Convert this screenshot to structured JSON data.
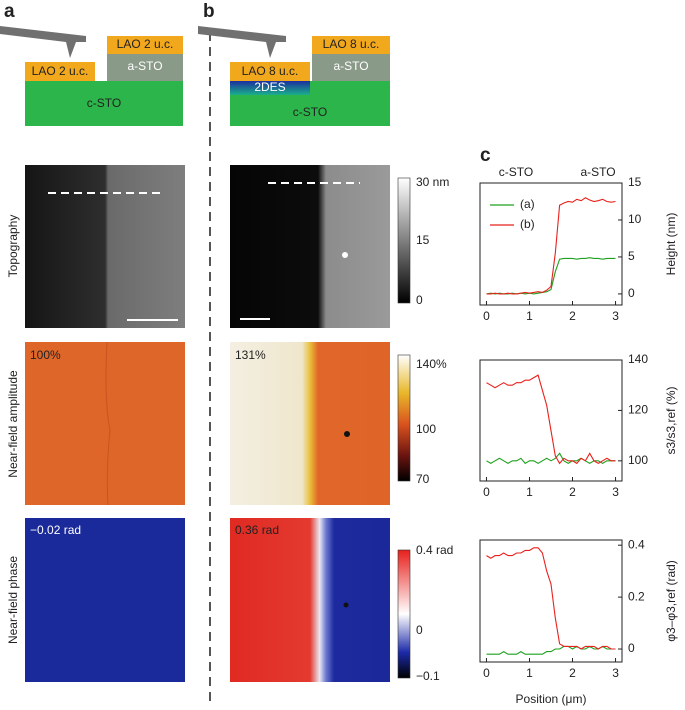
{
  "figure": {
    "panel_labels": {
      "a": "a",
      "b": "b",
      "c": "c"
    },
    "schematic_a": {
      "lao_left": "LAO 2 u.c.",
      "lao_right": "LAO 2 u.c.",
      "a_sto": "a-STO",
      "c_sto": "c-STO"
    },
    "schematic_b": {
      "lao_left": "LAO 8 u.c.",
      "lao_right": "LAO 8 u.c.",
      "a_sto": "a-STO",
      "c_sto": "c-STO",
      "twodes": "2DES"
    },
    "row_labels": [
      "Topography",
      "Near-field amplitude",
      "Near-field phase"
    ],
    "image_annotations": {
      "a_amp": "100%",
      "a_phase": "−0.02 rad",
      "b_amp": "131%",
      "b_phase": "0.36 rad"
    },
    "colorbars": [
      [
        "30 nm",
        "15",
        "0"
      ],
      [
        "140%",
        "100",
        "70"
      ],
      [
        "0.4 rad",
        "0",
        "−0.1"
      ]
    ]
  },
  "chart_data": [
    {
      "type": "line",
      "ylabel": "Height (nm)",
      "annotations": [
        "c-STO",
        "a-STO"
      ],
      "legend": "upper left",
      "x": [
        0,
        0.1,
        0.2,
        0.3,
        0.4,
        0.5,
        0.6,
        0.7,
        0.8,
        0.9,
        1,
        1.1,
        1.2,
        1.3,
        1.4,
        1.5,
        1.6,
        1.7,
        1.8,
        1.9,
        2,
        2.1,
        2.2,
        2.3,
        2.4,
        2.5,
        2.6,
        2.7,
        2.8,
        2.9,
        3
      ],
      "xlim": [
        -0.15,
        3.15
      ],
      "xticks": [
        0,
        1,
        2,
        3
      ],
      "ylim": [
        -1.5,
        15
      ],
      "yticks": [
        0,
        5,
        10,
        15
      ],
      "series": [
        {
          "name": "(a)",
          "color": "#1fa01f",
          "values": [
            0,
            0.1,
            0,
            0.1,
            0,
            0,
            0.1,
            0,
            0.1,
            0,
            0.1,
            0,
            0.1,
            0.2,
            0.3,
            0.6,
            3.0,
            4.7,
            4.8,
            4.8,
            4.8,
            4.7,
            4.8,
            4.8,
            4.9,
            4.8,
            4.8,
            4.7,
            4.8,
            4.8,
            4.8
          ]
        },
        {
          "name": "(b)",
          "color": "#e8211c",
          "values": [
            0,
            0,
            0.1,
            0,
            0,
            0.1,
            0,
            0,
            0.1,
            0.2,
            0.1,
            0.2,
            0.3,
            0.2,
            0.5,
            1.0,
            5.5,
            12.0,
            12.3,
            12.5,
            12.4,
            12.8,
            12.6,
            13.0,
            12.7,
            12.5,
            12.6,
            12.8,
            12.5,
            12.4,
            12.5
          ]
        }
      ]
    },
    {
      "type": "line",
      "ylabel": "s3/s3,ref (%)",
      "x": [
        0,
        0.1,
        0.2,
        0.3,
        0.4,
        0.5,
        0.6,
        0.7,
        0.8,
        0.9,
        1,
        1.1,
        1.2,
        1.3,
        1.4,
        1.5,
        1.6,
        1.7,
        1.8,
        1.9,
        2,
        2.1,
        2.2,
        2.3,
        2.4,
        2.5,
        2.6,
        2.7,
        2.8,
        2.9,
        3
      ],
      "xlim": [
        -0.15,
        3.15
      ],
      "xticks": [
        0,
        1,
        2,
        3
      ],
      "ylim": [
        92,
        140
      ],
      "yticks": [
        100,
        120,
        140
      ],
      "series": [
        {
          "color": "#1fa01f",
          "values": [
            100,
            99,
            100,
            101,
            100,
            99,
            100,
            100,
            101,
            99,
            100,
            100,
            99,
            100,
            101,
            100,
            101,
            103,
            100,
            99,
            100,
            100,
            101,
            100,
            99,
            100,
            100,
            99,
            100,
            100,
            100
          ]
        },
        {
          "color": "#e8211c",
          "values": [
            131,
            130,
            129,
            130,
            131,
            130,
            130,
            131,
            131,
            132,
            132,
            133,
            134,
            128,
            122,
            112,
            102,
            99,
            101,
            100,
            100,
            99,
            101,
            100,
            103,
            100,
            99,
            100,
            101,
            100,
            100
          ]
        }
      ]
    },
    {
      "type": "line",
      "ylabel": "φ3–φ3,ref (rad)",
      "xlabel": "Position (μm)",
      "x": [
        0,
        0.1,
        0.2,
        0.3,
        0.4,
        0.5,
        0.6,
        0.7,
        0.8,
        0.9,
        1,
        1.1,
        1.2,
        1.3,
        1.4,
        1.5,
        1.6,
        1.7,
        1.8,
        1.9,
        2,
        2.1,
        2.2,
        2.3,
        2.4,
        2.5,
        2.6,
        2.7,
        2.8,
        2.9,
        3
      ],
      "xlim": [
        -0.15,
        3.15
      ],
      "xticks": [
        0,
        1,
        2,
        3
      ],
      "ylim": [
        -0.05,
        0.42
      ],
      "yticks": [
        0,
        0.2,
        0.4
      ],
      "series": [
        {
          "color": "#1fa01f",
          "values": [
            -0.02,
            -0.02,
            -0.02,
            -0.02,
            -0.01,
            -0.02,
            -0.02,
            -0.02,
            -0.01,
            -0.02,
            -0.02,
            -0.02,
            -0.02,
            -0.02,
            -0.01,
            -0.01,
            0,
            0,
            0.01,
            0.01,
            0,
            0.01,
            0,
            0,
            0.01,
            0,
            0,
            0.01,
            0,
            0,
            0
          ]
        },
        {
          "color": "#e8211c",
          "values": [
            0.36,
            0.35,
            0.36,
            0.36,
            0.37,
            0.36,
            0.36,
            0.37,
            0.37,
            0.38,
            0.38,
            0.39,
            0.39,
            0.37,
            0.3,
            0.25,
            0.12,
            0.02,
            0.01,
            0.01,
            0.01,
            0.01,
            0,
            0.01,
            0.01,
            0.01,
            0,
            0.01,
            0.01,
            0,
            0
          ]
        }
      ]
    }
  ]
}
